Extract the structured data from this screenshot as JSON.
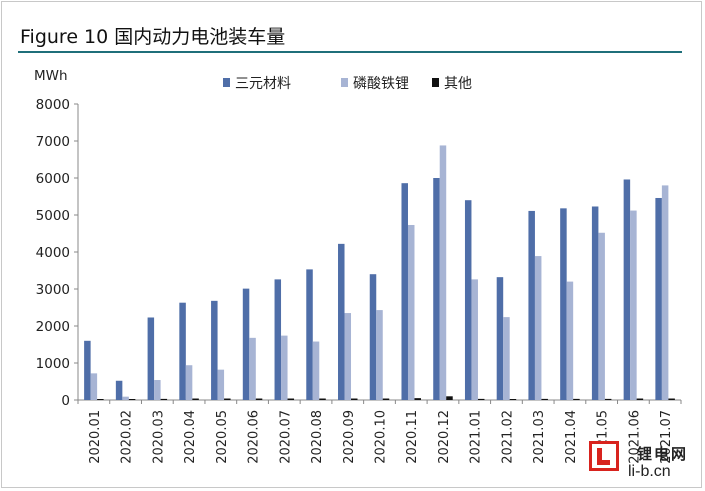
{
  "figure": {
    "title": "Figure 10  国内动力电池装车量"
  },
  "watermark": {
    "name": "锂电网",
    "url": "li-b.cn"
  },
  "colors": {
    "ternary": "#4f6ea8",
    "lfp": "#a7b4d4",
    "other": "#111111",
    "rule": "#1f6f7a"
  },
  "chart_data": {
    "type": "bar",
    "ylabel": "MWh",
    "ylim": [
      0,
      8000
    ],
    "yticks": [
      0,
      1000,
      2000,
      3000,
      4000,
      5000,
      6000,
      7000,
      8000
    ],
    "legend_position": "top-center",
    "categories": [
      "2020.01",
      "2020.02",
      "2020.03",
      "2020.04",
      "2020.05",
      "2020.06",
      "2020.07",
      "2020.08",
      "2020.09",
      "2020.10",
      "2020.11",
      "2020.12",
      "2021.01",
      "2021.02",
      "2021.03",
      "2021.04",
      "2021.05",
      "2021.06",
      "2021.07"
    ],
    "series": [
      {
        "name": "三元材料",
        "values": [
          1600,
          520,
          2230,
          2630,
          2680,
          3010,
          3260,
          3530,
          4220,
          3400,
          5860,
          6000,
          5400,
          3320,
          5110,
          5180,
          5230,
          5960,
          5460
        ]
      },
      {
        "name": "磷酸铁锂",
        "values": [
          720,
          90,
          540,
          940,
          820,
          1680,
          1740,
          1580,
          2350,
          2430,
          4730,
          6880,
          3260,
          2240,
          3890,
          3200,
          4520,
          5120,
          5800
        ]
      },
      {
        "name": "其他",
        "values": [
          20,
          10,
          30,
          40,
          40,
          40,
          40,
          40,
          40,
          40,
          50,
          100,
          30,
          20,
          30,
          30,
          30,
          40,
          40
        ]
      }
    ]
  }
}
